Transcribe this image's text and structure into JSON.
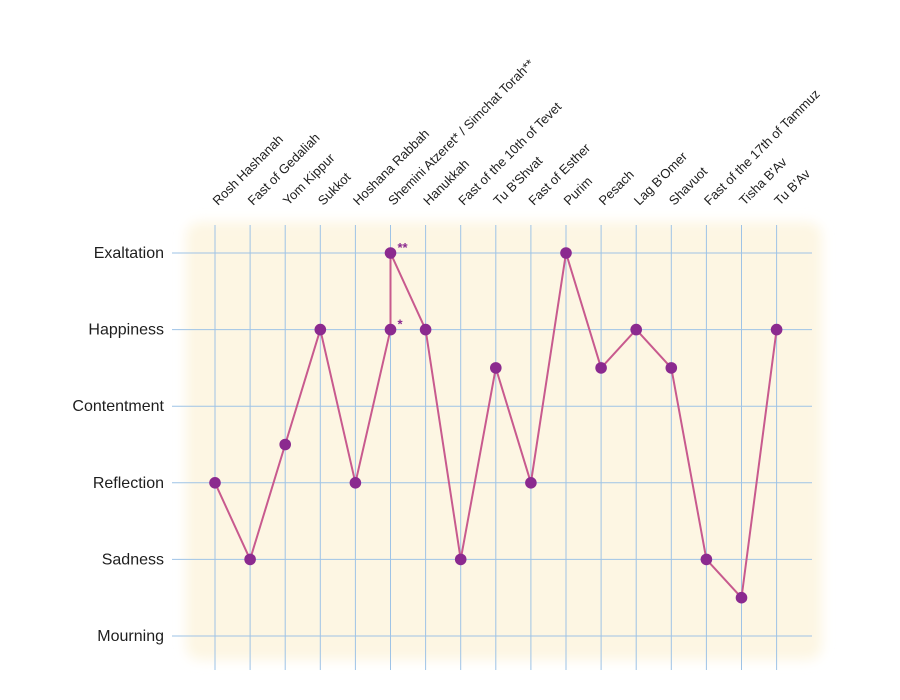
{
  "chart_data": {
    "type": "line",
    "title": "",
    "xlabel": "",
    "ylabel": "",
    "y_levels": [
      "Mourning",
      "Sadness",
      "Reflection",
      "Contentment",
      "Happiness",
      "Exaltation"
    ],
    "ylim": [
      0,
      5
    ],
    "grid": true,
    "categories": [
      "Rosh Hashanah",
      "Fast of Gedaliah",
      "Yom Kippur",
      "Sukkot",
      "Hoshana Rabbah",
      "Shemini Atzeret* / Simchat Torah**",
      "Hanukkah",
      "Fast of the 10th of Tevet",
      "Tu B'Shvat",
      "Fast of Esther",
      "Purim",
      "Pesach",
      "Lag B'Omer",
      "Shavuot",
      "Fast of the 17th of Tammuz",
      "Tisha B'Av",
      "Tu B'Av"
    ],
    "points": [
      {
        "x": 0,
        "y": 2
      },
      {
        "x": 1,
        "y": 1
      },
      {
        "x": 2,
        "y": 2.5
      },
      {
        "x": 3,
        "y": 4
      },
      {
        "x": 4,
        "y": 2
      },
      {
        "x": 5,
        "y": 4,
        "marker": "*"
      },
      {
        "x": 5,
        "y": 5,
        "marker": "**"
      },
      {
        "x": 6,
        "y": 4
      },
      {
        "x": 7,
        "y": 1
      },
      {
        "x": 8,
        "y": 3.5
      },
      {
        "x": 9,
        "y": 2
      },
      {
        "x": 10,
        "y": 5
      },
      {
        "x": 11,
        "y": 3.5
      },
      {
        "x": 12,
        "y": 4
      },
      {
        "x": 13,
        "y": 3.5
      },
      {
        "x": 14,
        "y": 1
      },
      {
        "x": 15,
        "y": 0.5
      },
      {
        "x": 16,
        "y": 4
      }
    ],
    "colors": {
      "line": "#c85a8e",
      "point": "#8b2a8f",
      "grid": "#9ec3e6",
      "background": "#fdf6e3"
    }
  }
}
